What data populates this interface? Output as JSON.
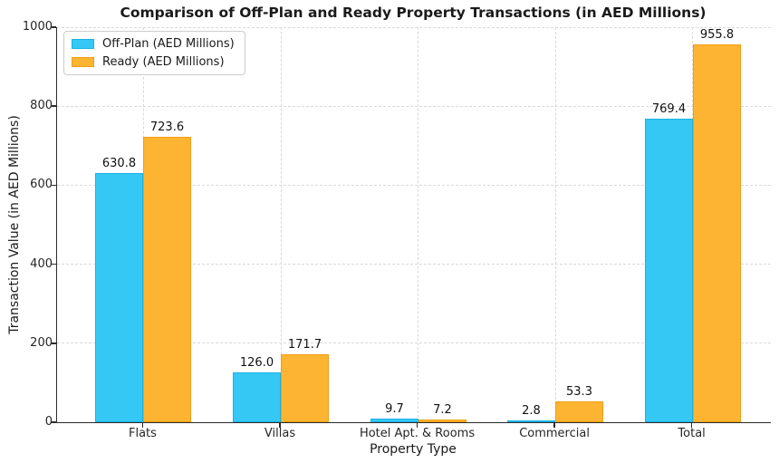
{
  "chart_data": {
    "type": "bar",
    "title": "Comparison of Off-Plan and Ready Property Transactions (in AED Millions)",
    "xlabel": "Property Type",
    "ylabel": "Transaction Value (in AED Millions)",
    "categories": [
      "Flats",
      "Villas",
      "Hotel Apt. & Rooms",
      "Commercial",
      "Total"
    ],
    "series": [
      {
        "name": "Off-Plan (AED Millions)",
        "color": "#35C8F5",
        "edge_color": "#1ab2e3",
        "values": [
          630.8,
          126.0,
          9.7,
          2.8,
          769.4
        ]
      },
      {
        "name": "Ready (AED Millions)",
        "color": "#FDB432",
        "edge_color": "#f09e14",
        "values": [
          723.6,
          171.7,
          7.2,
          53.3,
          955.8
        ]
      }
    ],
    "ylim": [
      0,
      1000
    ],
    "yticks": [
      0,
      200,
      400,
      600,
      800,
      1000
    ],
    "grid": true,
    "grid_style": "dashed",
    "legend_position": "upper left",
    "value_label_decimals": 1
  }
}
